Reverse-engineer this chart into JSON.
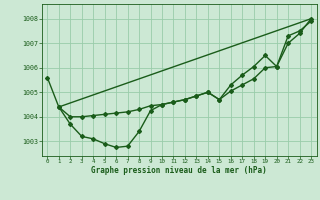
{
  "title": "Graphe pression niveau de la mer (hPa)",
  "background_color": "#cce8d4",
  "grid_color": "#99ccaa",
  "line_color": "#1a5c1a",
  "xlim": [
    -0.5,
    23.5
  ],
  "ylim": [
    1002.4,
    1008.6
  ],
  "yticks": [
    1003,
    1004,
    1005,
    1006,
    1007,
    1008
  ],
  "xticks": [
    0,
    1,
    2,
    3,
    4,
    5,
    6,
    7,
    8,
    9,
    10,
    11,
    12,
    13,
    14,
    15,
    16,
    17,
    18,
    19,
    20,
    21,
    22,
    23
  ],
  "series": [
    {
      "x": [
        0,
        1,
        2,
        3,
        4,
        5,
        6,
        7,
        8,
        9,
        10,
        11,
        12,
        13,
        14,
        15,
        16,
        17,
        18,
        19,
        20,
        21,
        22,
        23
      ],
      "y": [
        1005.6,
        1004.4,
        1004.0,
        1004.0,
        1004.05,
        1004.1,
        1004.15,
        1004.2,
        1004.3,
        1004.45,
        1004.5,
        1004.6,
        1004.7,
        1004.85,
        1005.0,
        1004.7,
        1005.3,
        1005.7,
        1006.05,
        1006.5,
        1006.05,
        1007.3,
        1007.5,
        1007.9
      ]
    },
    {
      "x": [
        1,
        2,
        3,
        4,
        5,
        6,
        7,
        8,
        9,
        10,
        11,
        12,
        13,
        14,
        15,
        16,
        17,
        18,
        19,
        20,
        21,
        22,
        23
      ],
      "y": [
        1004.4,
        1003.7,
        1003.2,
        1003.1,
        1002.9,
        1002.75,
        1002.8,
        1003.4,
        1004.25,
        1004.5,
        1004.6,
        1004.7,
        1004.85,
        1005.0,
        1004.7,
        1005.05,
        1005.3,
        1005.55,
        1006.0,
        1006.05,
        1007.0,
        1007.4,
        1008.0
      ]
    },
    {
      "x": [
        1,
        23
      ],
      "y": [
        1004.4,
        1008.0
      ]
    }
  ],
  "marker": "D",
  "markersize": 2.0,
  "linewidth": 1.0
}
